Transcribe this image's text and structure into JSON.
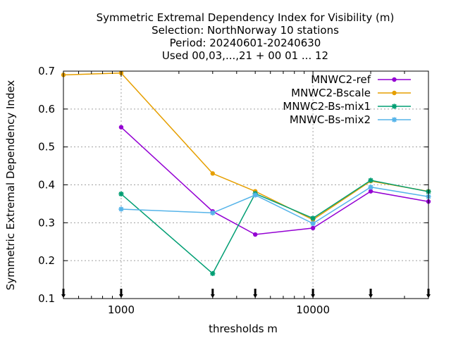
{
  "chart_data": {
    "type": "line",
    "title_lines": [
      "Symmetric Extremal Dependency Index  for Visibility (m)",
      "Selection: NorthNorway     10 stations",
      "Period: 20240601-20240630",
      "Used 00,03,...,21 + 00 01 ... 12"
    ],
    "xlabel": "thresholds m",
    "ylabel": "Symmetric Extremal Dependency Index",
    "x_scale": "log",
    "xlim": [
      500,
      40000
    ],
    "ylim": [
      0.1,
      0.7
    ],
    "x_ticks": [
      1000,
      10000
    ],
    "x_tick_labels": [
      "1000",
      "10000"
    ],
    "y_ticks": [
      0.1,
      0.2,
      0.3,
      0.4,
      0.5,
      0.6,
      0.7
    ],
    "y_tick_labels": [
      "0.1",
      "0.2",
      "0.3",
      "0.4",
      "0.5",
      "0.6",
      "0.7"
    ],
    "grid": true,
    "legend_position": "top-right",
    "threshold_markers": [
      500,
      1000,
      3000,
      5000,
      10000,
      20000,
      40000
    ],
    "series": [
      {
        "name": "MNWC2-ref",
        "color": "#9400d3",
        "marker": "circle",
        "x": [
          1000,
          3000,
          5000,
          10000,
          20000,
          40000
        ],
        "y": [
          0.552,
          0.33,
          0.269,
          0.286,
          0.383,
          0.356
        ]
      },
      {
        "name": "MNWC2-Bscale",
        "color": "#e69f00",
        "marker": "circle",
        "x": [
          500,
          1000,
          3000,
          5000,
          10000,
          20000,
          40000
        ],
        "y": [
          0.69,
          0.695,
          0.43,
          0.383,
          0.308,
          0.41,
          0.383
        ]
      },
      {
        "name": "MNWC2-Bs-mix1",
        "color": "#009e73",
        "marker": "star",
        "x": [
          1000,
          3000,
          5000,
          10000,
          20000,
          40000
        ],
        "y": [
          0.376,
          0.166,
          0.377,
          0.312,
          0.412,
          0.382
        ]
      },
      {
        "name": "MNWC-Bs-mix2",
        "color": "#56b4e9",
        "marker": "star",
        "x": [
          1000,
          3000,
          5000,
          10000,
          20000,
          40000
        ],
        "y": [
          0.336,
          0.326,
          0.373,
          0.298,
          0.394,
          0.369
        ]
      }
    ]
  }
}
